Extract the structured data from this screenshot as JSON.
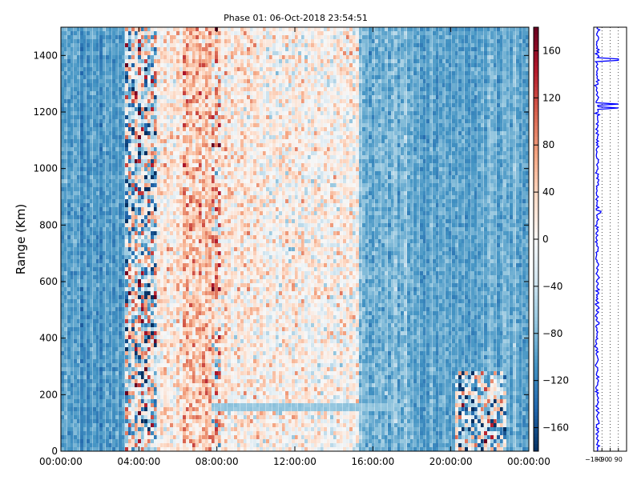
{
  "chart_data": [
    {
      "type": "heatmap",
      "title": "Phase 01: 06-Oct-2018 23:54:51",
      "xlabel": "",
      "ylabel": "Range (Km)",
      "x_ticks": [
        "00:00:00",
        "04:00:00",
        "08:00:00",
        "12:00:00",
        "16:00:00",
        "20:00:00",
        "00:00:00"
      ],
      "x_range_hours": [
        0,
        24
      ],
      "y_ticks": [
        0,
        200,
        400,
        600,
        800,
        1000,
        1200,
        1400
      ],
      "ylim": [
        0,
        1500
      ],
      "colormap": "RdBu_r",
      "value_range": [
        -180,
        180
      ],
      "regions": [
        {
          "hours": [
            0,
            3.3
          ],
          "mean": -105,
          "noise": 20
        },
        {
          "hours": [
            3.3,
            5.0
          ],
          "mean": -20,
          "noise": 150
        },
        {
          "hours": [
            5.0,
            6.2
          ],
          "mean": 15,
          "noise": 55
        },
        {
          "hours": [
            6.2,
            7.8
          ],
          "mean": 55,
          "noise": 60
        },
        {
          "hours": [
            7.8,
            8.2
          ],
          "mean": 40,
          "noise": 110
        },
        {
          "hours": [
            8.2,
            10.0
          ],
          "mean": 20,
          "noise": 55
        },
        {
          "hours": [
            10.0,
            15.3
          ],
          "mean": 8,
          "noise": 55
        },
        {
          "hours": [
            15.3,
            18.0
          ],
          "mean": -85,
          "noise": 25
        },
        {
          "hours": [
            18.0,
            24.0
          ],
          "mean": -95,
          "noise": 20
        }
      ],
      "features": [
        {
          "name": "horizontal band",
          "hours": [
            7.7,
            17.5
          ],
          "range_km": [
            140,
            170
          ],
          "value": -70
        },
        {
          "name": "lower noisy block",
          "hours": [
            20.2,
            22.8
          ],
          "range_km": [
            0,
            280
          ],
          "mean": -40,
          "noise": 150
        }
      ],
      "grid": false
    },
    {
      "type": "bar",
      "title": "",
      "orientation": "colorbar",
      "ticks": [
        -160,
        -120,
        -80,
        -40,
        0,
        40,
        80,
        120,
        160
      ],
      "ylim": [
        -180,
        180
      ]
    },
    {
      "type": "line",
      "title": "",
      "xlabel": "",
      "ylabel": "",
      "x_ticks": [
        "-180",
        "-90",
        "0",
        "90"
      ],
      "xlim": [
        -180,
        180
      ],
      "ylim": [
        0,
        1500
      ],
      "grid_x": [
        -90,
        0,
        90
      ],
      "series": [
        {
          "color": "#0000ff",
          "profile_range_km": [
            0,
            1500
          ],
          "typical_value": -140,
          "spread": 18,
          "spikes": [
            {
              "range_km": 1385,
              "value": 90
            },
            {
              "range_km": 1230,
              "value": 90
            },
            {
              "range_km": 1215,
              "value": 90
            },
            {
              "range_km": 1195,
              "value": -165
            },
            {
              "range_km": 985,
              "value": -160
            },
            {
              "range_km": 850,
              "value": -100
            },
            {
              "range_km": 845,
              "value": -105
            },
            {
              "range_km": 210,
              "value": -160
            }
          ]
        }
      ]
    }
  ]
}
